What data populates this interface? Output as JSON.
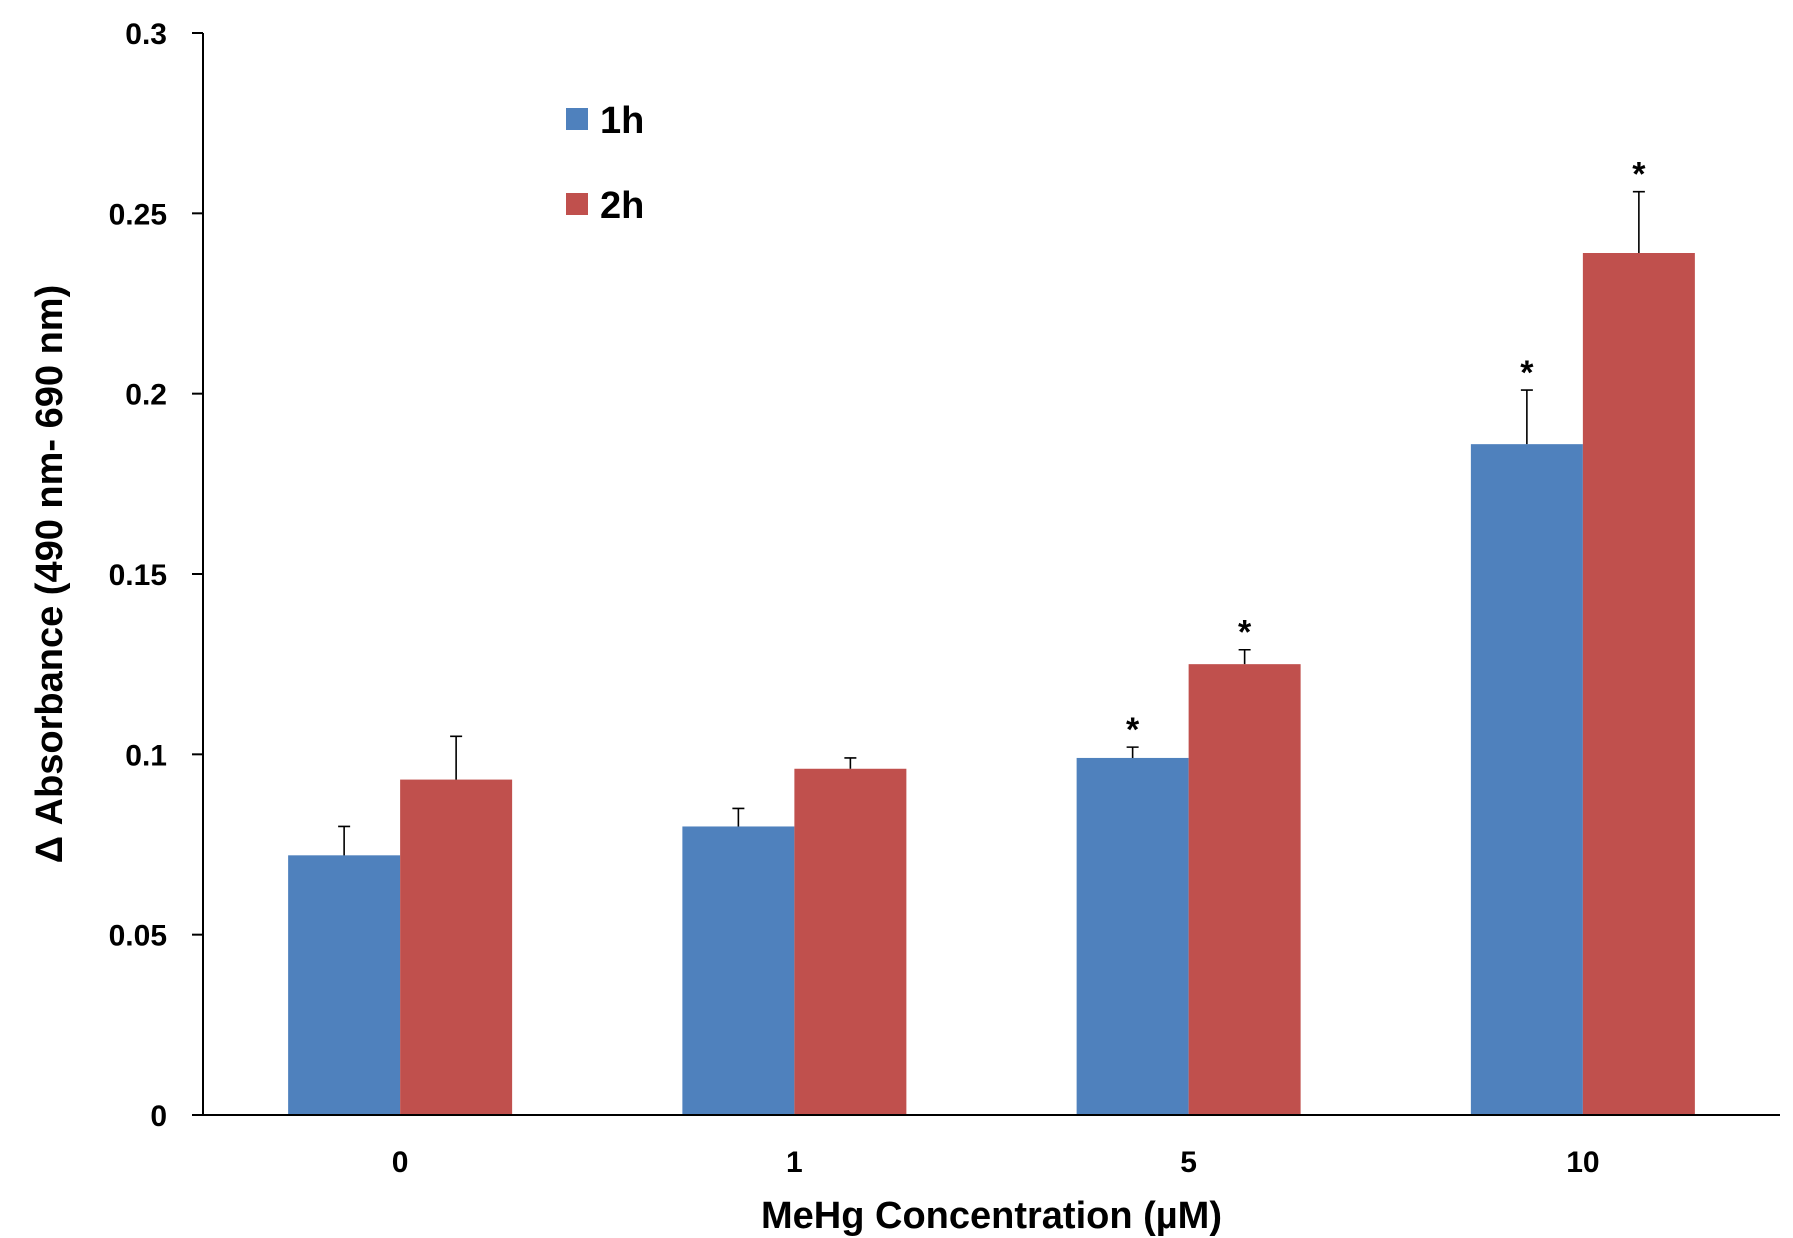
{
  "chart_data": {
    "type": "bar",
    "categories": [
      "0",
      "1",
      "5",
      "10"
    ],
    "series": [
      {
        "name": "1h",
        "color": "#4f81bd",
        "values": [
          0.072,
          0.08,
          0.099,
          0.186
        ],
        "errors": [
          0.008,
          0.005,
          0.003,
          0.015
        ],
        "significance": [
          "",
          "",
          "*",
          "*"
        ]
      },
      {
        "name": "2h",
        "color": "#c0504d",
        "values": [
          0.093,
          0.096,
          0.125,
          0.239
        ],
        "errors": [
          0.012,
          0.003,
          0.004,
          0.017
        ],
        "significance": [
          "",
          "",
          "*",
          "*"
        ]
      }
    ],
    "xlabel": "MeHg Concentration (µM)",
    "ylabel": "Δ Absorbance (490 nm- 690 nm)",
    "ylim": [
      0,
      0.3
    ],
    "yticks": [
      "0",
      "0.05",
      "0.1",
      "0.15",
      "0.2",
      "0.25",
      "0.3"
    ],
    "grid": false,
    "legend_position": "top-left"
  }
}
